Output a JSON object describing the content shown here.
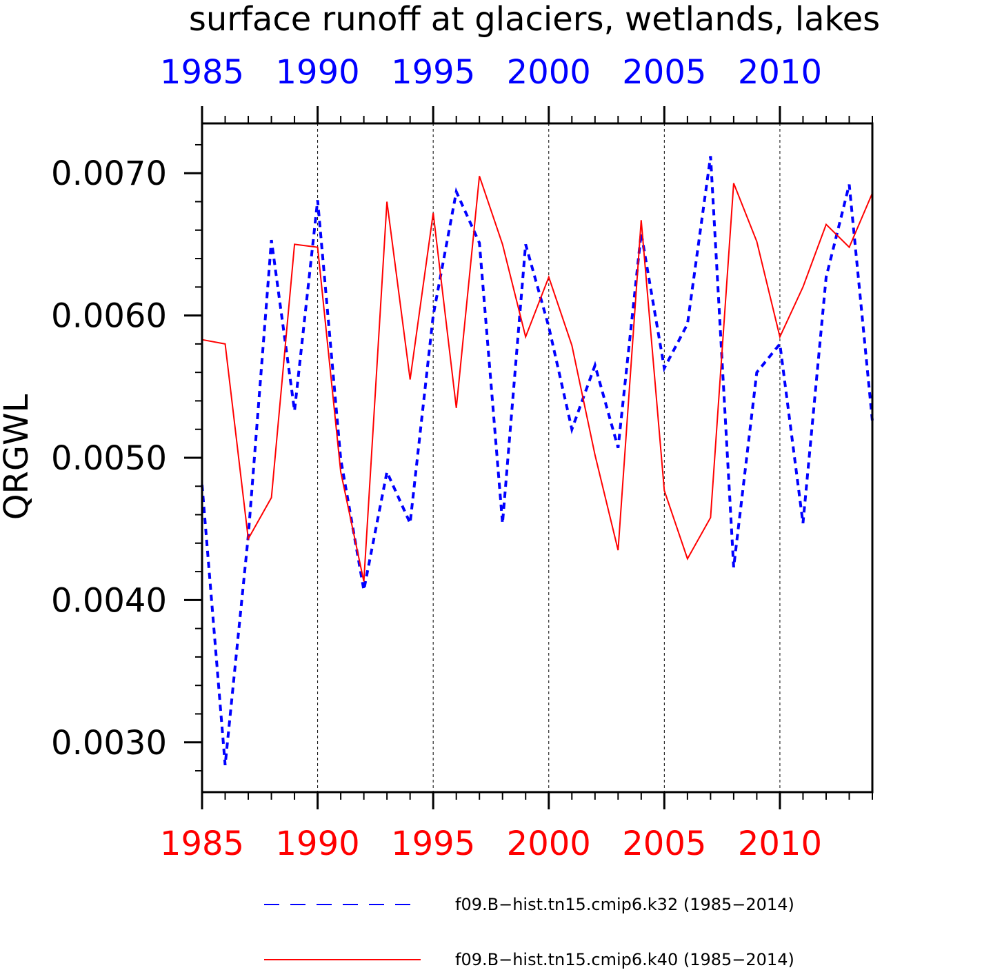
{
  "chart_data": {
    "type": "line",
    "title": "surface runoff at glaciers, wetlands, lakes",
    "ylabel": "QRGWL",
    "xlabel": "",
    "xlim": [
      1985,
      2014
    ],
    "ylim": [
      0.00265,
      0.00735
    ],
    "x_ticks_major": [
      1985,
      1990,
      1995,
      2000,
      2005,
      2010
    ],
    "x_tick_labels": [
      "1985",
      "1990",
      "1995",
      "2000",
      "2005",
      "2010"
    ],
    "y_ticks_major": [
      0.003,
      0.004,
      0.005,
      0.006,
      0.007
    ],
    "y_tick_labels": [
      "0.0030",
      "0.0040",
      "0.0050",
      "0.0060",
      "0.0070"
    ],
    "vertical_grid": "dotted at major year ticks",
    "top_axis_label_color": "#0000ff",
    "bottom_axis_label_color": "#ff0000",
    "legend_position": "bottom",
    "x": [
      1985,
      1986,
      1987,
      1988,
      1989,
      1990,
      1991,
      1992,
      1993,
      1994,
      1995,
      1996,
      1997,
      1998,
      1999,
      2000,
      2001,
      2002,
      2003,
      2004,
      2005,
      2006,
      2007,
      2008,
      2009,
      2010,
      2011,
      2012,
      2013,
      2014
    ],
    "series": [
      {
        "name": "f09.B−hist.tn15.cmip6.k32 (1985−2014)",
        "color": "#0000ff",
        "style": "dashed",
        "values": [
          0.00481,
          0.00284,
          0.00445,
          0.00653,
          0.00533,
          0.00681,
          0.00499,
          0.00407,
          0.0049,
          0.00454,
          0.006,
          0.00687,
          0.00651,
          0.00454,
          0.0065,
          0.00592,
          0.0052,
          0.00565,
          0.00507,
          0.00658,
          0.00563,
          0.00594,
          0.00712,
          0.00423,
          0.0056,
          0.0058,
          0.00454,
          0.00627,
          0.00692,
          0.00526
        ]
      },
      {
        "name": "f09.B−hist.tn15.cmip6.k40 (1985−2014)",
        "color": "#ff0000",
        "style": "solid",
        "values": [
          0.00583,
          0.0058,
          0.00443,
          0.00472,
          0.0065,
          0.00648,
          0.0049,
          0.00413,
          0.0068,
          0.00555,
          0.00672,
          0.00535,
          0.00698,
          0.0065,
          0.00585,
          0.00627,
          0.00579,
          0.00502,
          0.00435,
          0.00667,
          0.00477,
          0.00429,
          0.00458,
          0.00693,
          0.00652,
          0.00585,
          0.0062,
          0.00664,
          0.00648,
          0.00686
        ]
      }
    ]
  }
}
